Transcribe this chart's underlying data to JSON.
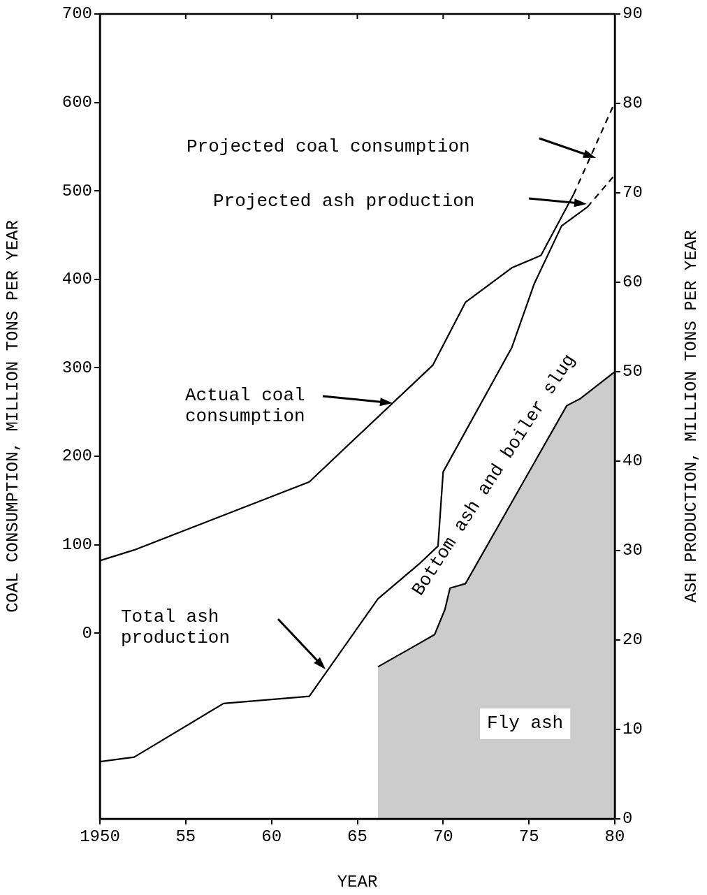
{
  "chart_data": {
    "type": "line",
    "xlabel": "YEAR",
    "ylabel": "COAL CONSUMPTION, MILLION TONS PER YEAR",
    "y2label": "ASH PRODUCTION, MILLION TONS PER YEAR",
    "xlim": [
      1950,
      1980
    ],
    "xticks": [
      {
        "value": 1950,
        "label": "1950"
      },
      {
        "value": 1955,
        "label": "55"
      },
      {
        "value": 1960,
        "label": "60"
      },
      {
        "value": 1965,
        "label": "65"
      },
      {
        "value": 1970,
        "label": "70"
      },
      {
        "value": 1975,
        "label": "75"
      },
      {
        "value": 1980,
        "label": "80"
      }
    ],
    "ylim": [
      -210,
      700
    ],
    "yticks": [
      0,
      100,
      200,
      300,
      400,
      500,
      600,
      700
    ],
    "y2lim": [
      0,
      90
    ],
    "y2ticks": [
      0,
      10,
      20,
      30,
      40,
      50,
      60,
      70,
      80,
      90
    ],
    "grid": false,
    "legend": false,
    "marker": "none",
    "series": [
      {
        "type": "line",
        "color": "#000000",
        "x": [
          1950,
          1952,
          1962.2,
          1969.4,
          1971.3,
          1974,
          1975.7,
          1977.6
        ],
        "values": [
          82,
          94,
          171,
          303,
          374,
          413,
          427,
          496
        ]
      },
      {
        "type": "line",
        "line_style": "dashed",
        "color": "#000000",
        "x": [
          1977.6,
          1980
        ],
        "values": [
          496,
          600
        ]
      },
      {
        "name": "Total ash production",
        "type": "line",
        "axis": "y2",
        "color": "#000000",
        "x": [
          1950,
          1952,
          1957.2,
          1962.2,
          1966.2,
          1968.6,
          1969.7,
          1970,
          1974,
          1975.3,
          1976.9,
          1978.4
        ],
        "values": [
          6.4,
          6.9,
          12.9,
          13.7,
          24.6,
          28.5,
          30.5,
          38.8,
          52.7,
          59.8,
          66.3,
          68.4
        ]
      },
      {
        "type": "line",
        "line_style": "dashed",
        "axis": "y2",
        "color": "#000000",
        "x": [
          1978.4,
          1980
        ],
        "values": [
          68.4,
          72
        ]
      },
      {
        "name": "Fly ash",
        "type": "area",
        "axis": "y2",
        "color": "#000000",
        "x": [
          1966.2,
          1968.5,
          1969.5,
          1970.1,
          1970.4,
          1971.3,
          1977.2,
          1978,
          1980
        ],
        "values": [
          17,
          19.5,
          20.6,
          23.4,
          25.8,
          26.3,
          46.2,
          47,
          50
        ]
      }
    ],
    "annotations": [
      "Bottom ash and boiler slug",
      "Projected coal consumption",
      "Projected ash production",
      "Actual coal consumption"
    ]
  }
}
